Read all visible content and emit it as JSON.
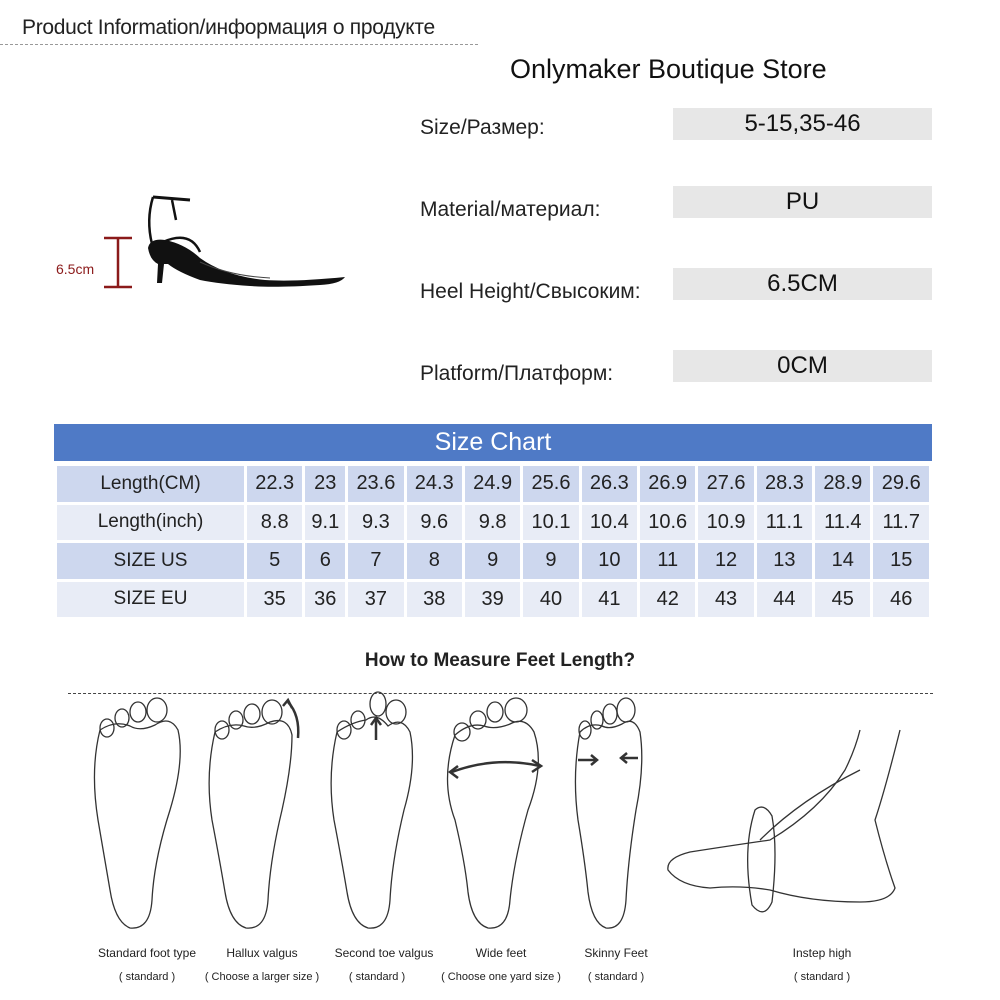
{
  "header": {
    "title": "Product Information/информация о продукте"
  },
  "store": {
    "name": "Onlymaker Boutique Store"
  },
  "product_image": {
    "height_label": "6.5cm",
    "accent_color": "#8b1a1a"
  },
  "specs": [
    {
      "label": "Size/Размер:",
      "value": "5-15,35-46"
    },
    {
      "label": "Material/материал:",
      "value": "PU"
    },
    {
      "label": "Heel Height/Свысоким:",
      "value": "6.5CM"
    },
    {
      "label": "Platform/Платформ:",
      "value": "0CM"
    }
  ],
  "size_chart": {
    "title": "Size Chart",
    "header_color": "#4f7ac6",
    "rows": [
      {
        "label": "Length(CM)",
        "values": [
          "22.3",
          "23",
          "23.6",
          "24.3",
          "24.9",
          "25.6",
          "26.3",
          "26.9",
          "27.6",
          "28.3",
          "28.9",
          "29.6"
        ]
      },
      {
        "label": "Length(inch)",
        "values": [
          "8.8",
          "9.1",
          "9.3",
          "9.6",
          "9.8",
          "10.1",
          "10.4",
          "10.6",
          "10.9",
          "11.1",
          "11.4",
          "11.7"
        ]
      },
      {
        "label": "SIZE US",
        "values": [
          "5",
          "6",
          "7",
          "8",
          "9",
          "9",
          "10",
          "11",
          "12",
          "13",
          "14",
          "15"
        ]
      },
      {
        "label": "SIZE EU",
        "values": [
          "35",
          "36",
          "37",
          "38",
          "39",
          "40",
          "41",
          "42",
          "43",
          "44",
          "45",
          "46"
        ]
      }
    ]
  },
  "measure": {
    "title": "How to Measure Feet Length?",
    "feet": [
      {
        "name": "Standard foot type",
        "note": "( standard )"
      },
      {
        "name": "Hallux valgus",
        "note": "( Choose a larger size )"
      },
      {
        "name": "Second toe valgus",
        "note": "( standard )"
      },
      {
        "name": "Wide feet",
        "note": "( Choose one yard size )"
      },
      {
        "name": "Skinny Feet",
        "note": "( standard )"
      },
      {
        "name": "Instep high",
        "note": "( standard )"
      }
    ]
  }
}
